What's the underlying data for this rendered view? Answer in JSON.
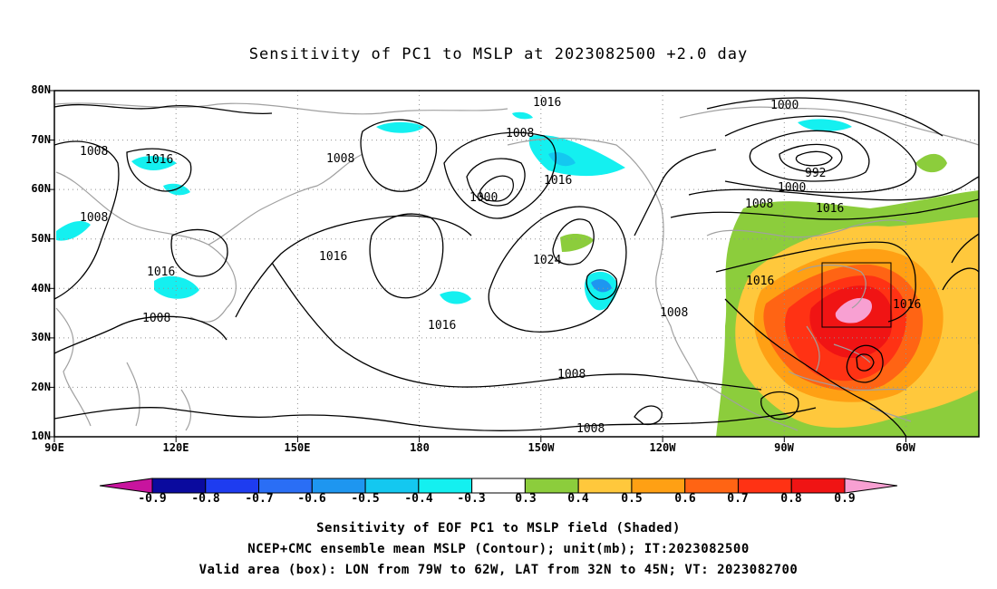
{
  "title": "Sensitivity of PC1 to MSLP at 2023082500 +2.0 day",
  "map": {
    "lat_labels": [
      "80N",
      "70N",
      "60N",
      "50N",
      "40N",
      "30N",
      "20N",
      "10N"
    ],
    "lon_labels": [
      "90E",
      "120E",
      "150E",
      "180",
      "150W",
      "120W",
      "90W",
      "60W"
    ],
    "contour_labels": [
      "1016",
      "1000",
      "1008",
      "1008",
      "1016",
      "1008",
      "992",
      "1000",
      "1016",
      "1008",
      "1016",
      "1000",
      "1008",
      "1016",
      "1024",
      "1016",
      "1016",
      "1008",
      "1016",
      "1008",
      "1016",
      "1008",
      "1008"
    ],
    "box": {
      "lon_from": "79W",
      "lon_to": "62W",
      "lat_from": "32N",
      "lat_to": "45N"
    }
  },
  "colorbar": {
    "labels": [
      "-0.9",
      "-0.8",
      "-0.7",
      "-0.6",
      "-0.5",
      "-0.4",
      "-0.3",
      "0.3",
      "0.4",
      "0.5",
      "0.6",
      "0.7",
      "0.8",
      "0.9"
    ],
    "colors": [
      "#0a0a9e",
      "#1e3cf0",
      "#2a6ef5",
      "#1e96f0",
      "#14c8f0",
      "#14f0f0",
      "#ffffff",
      "#8ccd3c",
      "#ffc83c",
      "#ffa014",
      "#ff6414",
      "#ff3214",
      "#f01414"
    ],
    "low_tip_color": "#c8149e",
    "high_tip_color": "#f8a0d2"
  },
  "footer": {
    "line1": "Sensitivity of EOF PC1 to MSLP field (Shaded)",
    "line2": "NCEP+CMC ensemble mean MSLP (Contour); unit(mb); IT:2023082500",
    "line3": "Valid area (box): LON from 79W to 62W, LAT from 32N to 45N; VT: 2023082700"
  }
}
